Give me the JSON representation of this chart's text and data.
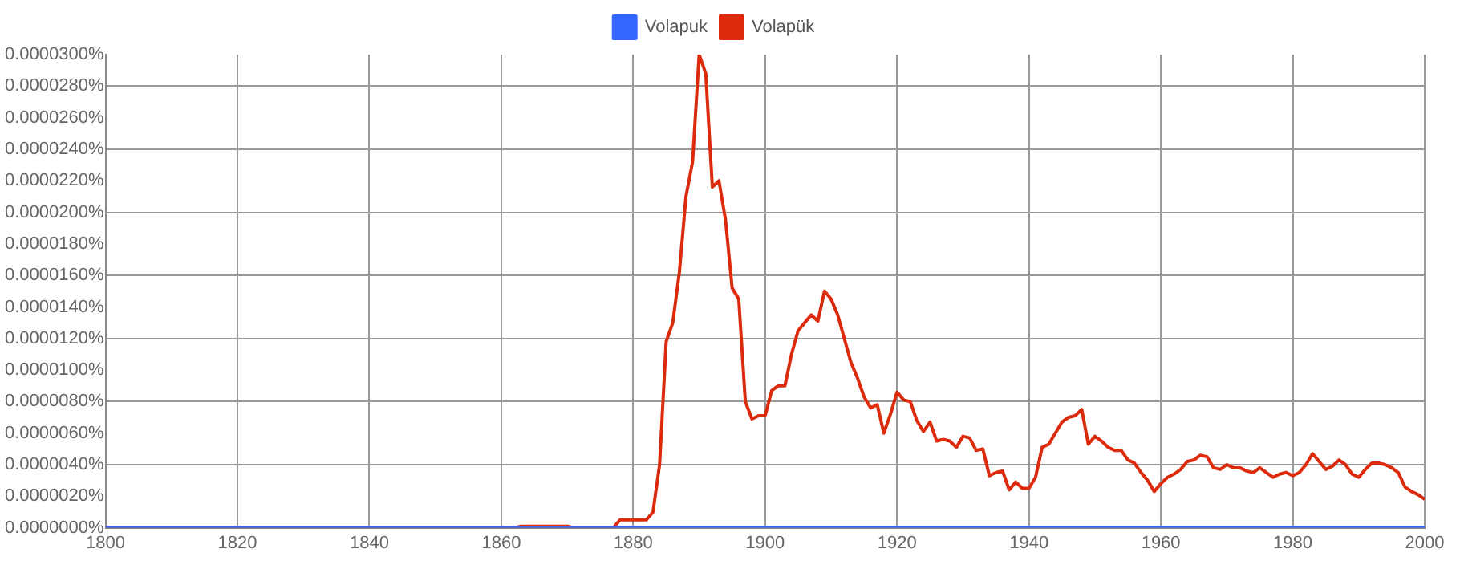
{
  "chart_data": {
    "type": "line",
    "legend": "top",
    "marker": "none",
    "grid": true,
    "xlim": [
      1800,
      2000
    ],
    "xticks": [
      1800,
      1820,
      1840,
      1860,
      1880,
      1900,
      1920,
      1940,
      1960,
      1980,
      2000
    ],
    "ylim": [
      0,
      3e-05
    ],
    "yticks": [
      {
        "value": 0,
        "label": "0.0000000%"
      },
      {
        "value": 2e-06,
        "label": "0.0000020%"
      },
      {
        "value": 4e-06,
        "label": "0.0000040%"
      },
      {
        "value": 6e-06,
        "label": "0.0000060%"
      },
      {
        "value": 8e-06,
        "label": "0.0000080%"
      },
      {
        "value": 1e-05,
        "label": "0.0000100%"
      },
      {
        "value": 1.2e-05,
        "label": "0.0000120%"
      },
      {
        "value": 1.4e-05,
        "label": "0.0000140%"
      },
      {
        "value": 1.6e-05,
        "label": "0.0000160%"
      },
      {
        "value": 1.8e-05,
        "label": "0.0000180%"
      },
      {
        "value": 2e-05,
        "label": "0.0000200%"
      },
      {
        "value": 2.2e-05,
        "label": "0.0000220%"
      },
      {
        "value": 2.4e-05,
        "label": "0.0000240%"
      },
      {
        "value": 2.6e-05,
        "label": "0.0000260%"
      },
      {
        "value": 2.8e-05,
        "label": "0.0000280%"
      },
      {
        "value": 3e-05,
        "label": "0.0000300%"
      }
    ],
    "series": [
      {
        "name": "Volapuk",
        "color": "#3366ff",
        "x": [
          1800,
          2000
        ],
        "values": [
          0,
          0
        ]
      },
      {
        "name": "Volapük",
        "color": "#dc2a0c",
        "x": [
          1800,
          1862,
          1863,
          1870,
          1871,
          1877,
          1878,
          1882,
          1883,
          1884,
          1885,
          1886,
          1887,
          1888,
          1889,
          1890,
          1891,
          1892,
          1893,
          1894,
          1895,
          1896,
          1897,
          1898,
          1899,
          1900,
          1901,
          1902,
          1903,
          1904,
          1905,
          1906,
          1907,
          1908,
          1909,
          1910,
          1911,
          1912,
          1913,
          1914,
          1915,
          1916,
          1917,
          1918,
          1919,
          1920,
          1921,
          1922,
          1923,
          1924,
          1925,
          1926,
          1927,
          1928,
          1929,
          1930,
          1931,
          1932,
          1933,
          1934,
          1935,
          1936,
          1937,
          1938,
          1939,
          1940,
          1941,
          1942,
          1943,
          1944,
          1945,
          1946,
          1947,
          1948,
          1949,
          1950,
          1951,
          1952,
          1953,
          1954,
          1955,
          1956,
          1957,
          1958,
          1959,
          1960,
          1961,
          1962,
          1963,
          1964,
          1965,
          1966,
          1967,
          1968,
          1969,
          1970,
          1971,
          1972,
          1973,
          1974,
          1975,
          1976,
          1977,
          1978,
          1979,
          1980,
          1981,
          1982,
          1983,
          1984,
          1985,
          1986,
          1987,
          1988,
          1989,
          1990,
          1991,
          1992,
          1993,
          1994,
          1995,
          1996,
          1997,
          1998,
          1999,
          2000
        ],
        "values": [
          0,
          0,
          1e-07,
          1e-07,
          0,
          0,
          5e-07,
          5e-07,
          1e-06,
          4e-06,
          1.18e-05,
          1.3e-05,
          1.62e-05,
          2.1e-05,
          2.32e-05,
          3e-05,
          2.88e-05,
          2.16e-05,
          2.2e-05,
          1.95e-05,
          1.52e-05,
          1.45e-05,
          8e-06,
          6.9e-06,
          7.1e-06,
          7.1e-06,
          8.7e-06,
          9e-06,
          9e-06,
          1.1e-05,
          1.25e-05,
          1.3e-05,
          1.35e-05,
          1.31e-05,
          1.5e-05,
          1.45e-05,
          1.35e-05,
          1.2e-05,
          1.05e-05,
          9.5e-06,
          8.3e-06,
          7.6e-06,
          7.8e-06,
          6e-06,
          7.2e-06,
          8.6e-06,
          8.1e-06,
          8e-06,
          6.8e-06,
          6.1e-06,
          6.7e-06,
          5.5e-06,
          5.6e-06,
          5.5e-06,
          5.1e-06,
          5.8e-06,
          5.7e-06,
          4.9e-06,
          5e-06,
          3.3e-06,
          3.5e-06,
          3.6e-06,
          2.4e-06,
          2.9e-06,
          2.5e-06,
          2.5e-06,
          3.2e-06,
          5.1e-06,
          5.3e-06,
          6e-06,
          6.7e-06,
          7e-06,
          7.1e-06,
          7.5e-06,
          5.3e-06,
          5.8e-06,
          5.5e-06,
          5.1e-06,
          4.9e-06,
          4.9e-06,
          4.3e-06,
          4.1e-06,
          3.5e-06,
          3e-06,
          2.3e-06,
          2.8e-06,
          3.2e-06,
          3.4e-06,
          3.7e-06,
          4.2e-06,
          4.3e-06,
          4.6e-06,
          4.5e-06,
          3.8e-06,
          3.7e-06,
          4e-06,
          3.8e-06,
          3.8e-06,
          3.6e-06,
          3.5e-06,
          3.8e-06,
          3.5e-06,
          3.2e-06,
          3.4e-06,
          3.5e-06,
          3.3e-06,
          3.5e-06,
          4e-06,
          4.7e-06,
          4.2e-06,
          3.7e-06,
          3.9e-06,
          4.3e-06,
          4e-06,
          3.4e-06,
          3.2e-06,
          3.7e-06,
          4.1e-06,
          4.1e-06,
          4e-06,
          3.8e-06,
          3.5e-06,
          2.6e-06,
          2.3e-06,
          2.1e-06,
          1.8e-06
        ]
      }
    ]
  }
}
